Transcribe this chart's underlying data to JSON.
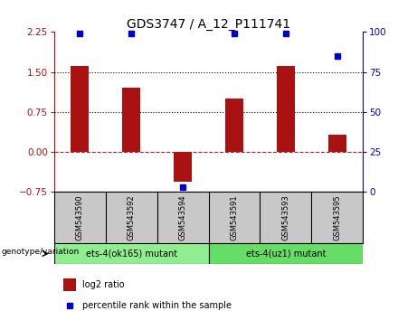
{
  "title": "GDS3747 / A_12_P111741",
  "categories": [
    "GSM543590",
    "GSM543592",
    "GSM543594",
    "GSM543591",
    "GSM543593",
    "GSM543595"
  ],
  "log2_ratio": [
    1.62,
    1.2,
    -0.55,
    1.0,
    1.62,
    0.32
  ],
  "percentile_rank": [
    99,
    99,
    3,
    99,
    99,
    85
  ],
  "bar_color": "#AA1111",
  "dot_color": "#0000CC",
  "ylim_left": [
    -0.75,
    2.25
  ],
  "ylim_right": [
    0,
    100
  ],
  "yticks_left": [
    -0.75,
    0,
    0.75,
    1.5,
    2.25
  ],
  "yticks_right": [
    0,
    25,
    50,
    75,
    100
  ],
  "hline_y": [
    0.75,
    1.5
  ],
  "hline_zero": 0,
  "group1_label": "ets-4(ok165) mutant",
  "group2_label": "ets-4(uz1) mutant",
  "group1_indices": [
    0,
    1,
    2
  ],
  "group2_indices": [
    3,
    4,
    5
  ],
  "legend_bar_label": "log2 ratio",
  "legend_dot_label": "percentile rank within the sample",
  "genotype_label": "genotype/variation",
  "group1_color": "#90EE90",
  "group2_color": "#66DD66",
  "sample_bg_color": "#C8C8C8",
  "title_fontsize": 10,
  "tick_fontsize": 7.5,
  "bar_width": 0.35
}
